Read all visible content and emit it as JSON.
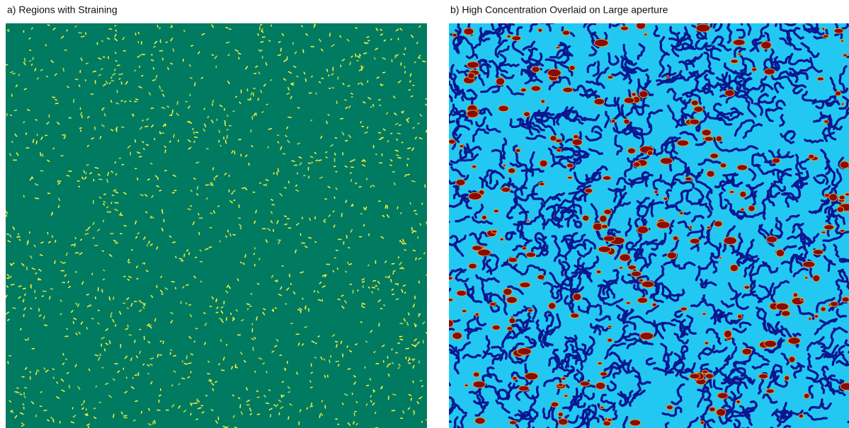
{
  "panels": [
    {
      "title": "a) Regions with Straining"
    },
    {
      "title": "b) High Concentration Overlaid on Large aperture"
    }
  ]
}
